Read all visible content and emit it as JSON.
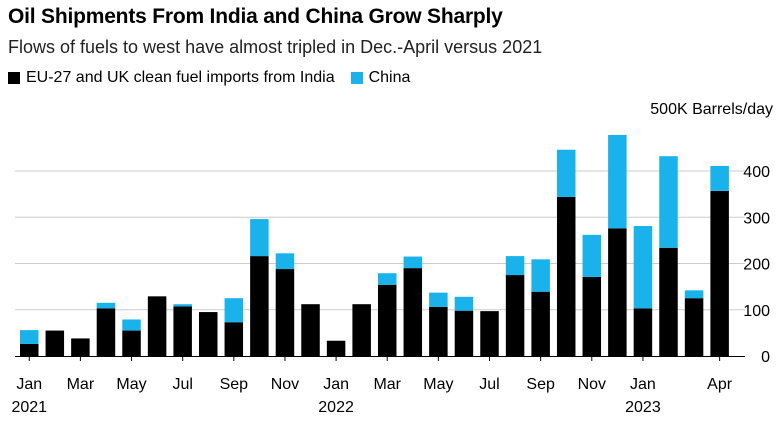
{
  "header": {
    "title": "Oil Shipments From India and China Grow Sharply",
    "subtitle": "Flows of fuels to west have almost tripled in Dec.-April versus 2021"
  },
  "colors": {
    "india": "#000000",
    "china": "#1ab2ea",
    "grid": "#cccccc"
  },
  "chart_data": {
    "type": "bar",
    "stacked": true,
    "title": "Oil Shipments From India and China Grow Sharply",
    "subtitle": "Flows of fuels to west have almost tripled in Dec.-April versus 2021",
    "unit_label": "500K Barrels/day",
    "ylim": [
      0,
      500
    ],
    "yticks": [
      0,
      100,
      200,
      300,
      400
    ],
    "ytick_labels": [
      "0",
      "100",
      "200",
      "300",
      "400"
    ],
    "xtick_labels": [
      "Jan",
      "Mar",
      "May",
      "Jul",
      "Sep",
      "Nov",
      "Jan",
      "Mar",
      "May",
      "Jul",
      "Sep",
      "Nov",
      "Jan",
      "Apr"
    ],
    "xtick_months": [
      "2021-01",
      "2021-03",
      "2021-05",
      "2021-07",
      "2021-09",
      "2021-11",
      "2022-01",
      "2022-03",
      "2022-05",
      "2022-07",
      "2022-09",
      "2022-11",
      "2023-01",
      "2023-04"
    ],
    "year_labels": [
      {
        "label": "2021",
        "month": "2021-01"
      },
      {
        "label": "2022",
        "month": "2022-01"
      },
      {
        "label": "2023",
        "month": "2023-01"
      }
    ],
    "legend_position": "top-left",
    "categories": [
      "2021-01",
      "2021-02",
      "2021-03",
      "2021-04",
      "2021-05",
      "2021-06",
      "2021-07",
      "2021-08",
      "2021-09",
      "2021-10",
      "2021-11",
      "2021-12",
      "2022-01",
      "2022-02",
      "2022-03",
      "2022-04",
      "2022-05",
      "2022-06",
      "2022-07",
      "2022-08",
      "2022-09",
      "2022-10",
      "2022-11",
      "2022-12",
      "2023-01",
      "2023-02",
      "2023-03",
      "2023-04"
    ],
    "series": [
      {
        "name": "EU-27 and UK clean fuel imports from India",
        "values": [
          26,
          55,
          38,
          103,
          55,
          129,
          107,
          95,
          73,
          216,
          188,
          112,
          33,
          112,
          154,
          190,
          106,
          98,
          97,
          175,
          139,
          344,
          171,
          276,
          103,
          234,
          125,
          357
        ]
      },
      {
        "name": "China",
        "values": [
          30,
          0,
          0,
          12,
          24,
          0,
          5,
          0,
          52,
          80,
          34,
          0,
          0,
          0,
          25,
          25,
          31,
          30,
          0,
          41,
          70,
          102,
          91,
          202,
          178,
          198,
          17,
          54
        ]
      }
    ]
  }
}
